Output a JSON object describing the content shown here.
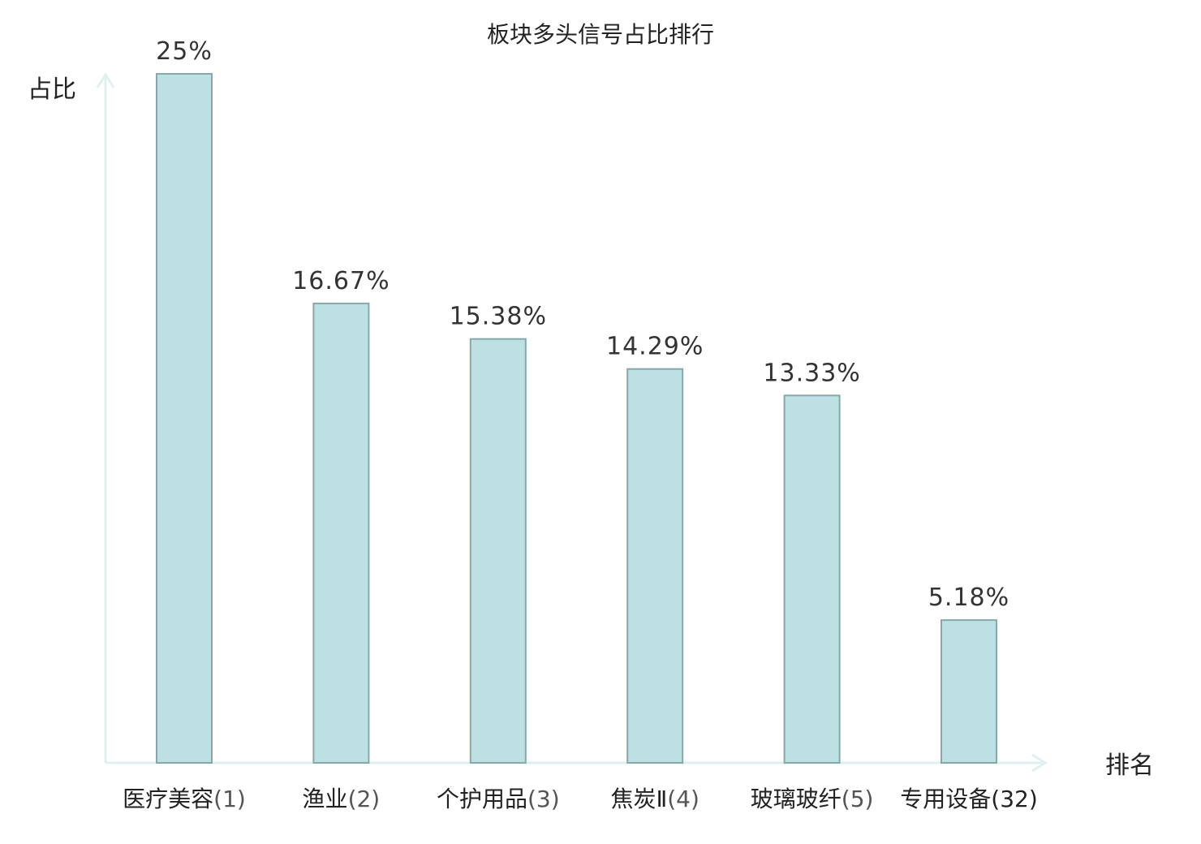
{
  "chart_data": {
    "type": "bar",
    "title": "板块多头信号占比排行",
    "xlabel": "排名",
    "ylabel": "占比",
    "categories": [
      "医疗美容",
      "渔业",
      "个护用品",
      "焦炭Ⅱ",
      "玻璃玻纤",
      "专用设备"
    ],
    "ranks": [
      "(1)",
      "(2)",
      "(3)",
      "(4)",
      "(5)",
      "(32)"
    ],
    "values": [
      25,
      16.67,
      15.38,
      14.29,
      13.33,
      5.18
    ],
    "value_labels": [
      "25%",
      "16.67%",
      "15.38%",
      "14.29%",
      "13.33%",
      "5.18%"
    ],
    "highlight_index": 5,
    "ylim": [
      0,
      25
    ],
    "grid": false,
    "legend": "none",
    "colors": {
      "bar_fill": "#bde0e2",
      "bar_stroke": "#86a8ab",
      "axis": "#dff1ee",
      "highlight_text": "#e8262b",
      "text": "#222222",
      "value_text": "#333333"
    }
  }
}
